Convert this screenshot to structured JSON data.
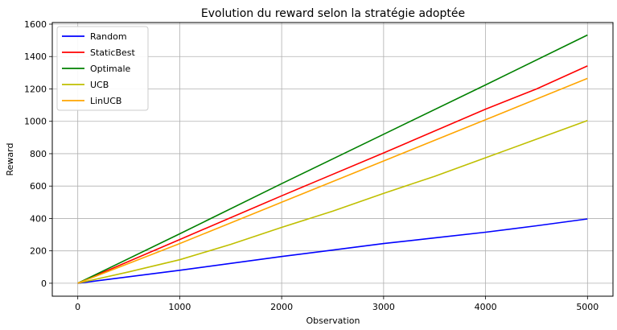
{
  "chart_data": {
    "type": "line",
    "title": "Evolution du reward selon la stratégie adoptée",
    "xlabel": "Observation",
    "ylabel": "Reward",
    "xlim": [
      -250,
      5250
    ],
    "ylim": [
      -80,
      1610
    ],
    "xticks": [
      0,
      1000,
      2000,
      3000,
      4000,
      5000
    ],
    "yticks": [
      0,
      200,
      400,
      600,
      800,
      1000,
      1200,
      1400,
      1600
    ],
    "grid": true,
    "legend_position": "top-left",
    "series": [
      {
        "name": "Random",
        "color": "#0000ff",
        "x": [
          0,
          1000,
          2000,
          2500,
          3000,
          3500,
          4000,
          4500,
          5000
        ],
        "y": [
          0,
          80,
          165,
          205,
          245,
          280,
          315,
          355,
          397
        ]
      },
      {
        "name": "StaticBest",
        "color": "#ff0000",
        "x": [
          0,
          1000,
          2000,
          3000,
          4000,
          4500,
          5000
        ],
        "y": [
          0,
          270,
          540,
          805,
          1075,
          1200,
          1342
        ]
      },
      {
        "name": "Optimale",
        "color": "#008000",
        "x": [
          0,
          1000,
          2000,
          3000,
          4000,
          5000
        ],
        "y": [
          0,
          305,
          615,
          920,
          1225,
          1533
        ]
      },
      {
        "name": "UCB",
        "color": "#bfbf00",
        "x": [
          0,
          500,
          1000,
          1500,
          2000,
          2500,
          3000,
          3500,
          4000,
          4500,
          5000
        ],
        "y": [
          0,
          70,
          145,
          240,
          345,
          445,
          555,
          660,
          775,
          890,
          1005
        ]
      },
      {
        "name": "LinUCB",
        "color": "#ffa500",
        "x": [
          0,
          1000,
          2000,
          3000,
          4000,
          5000
        ],
        "y": [
          0,
          245,
          500,
          755,
          1010,
          1265
        ]
      }
    ]
  }
}
